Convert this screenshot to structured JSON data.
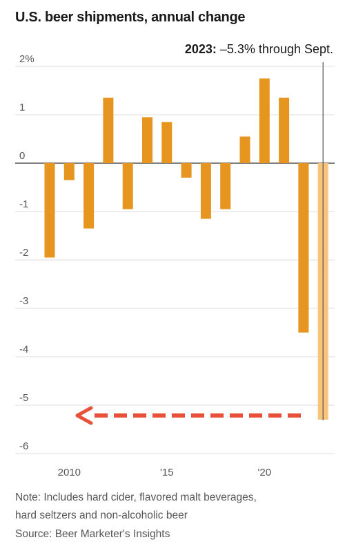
{
  "chart_data": {
    "type": "bar",
    "title": "U.S. beer shipments, annual change",
    "xlabel": "",
    "ylabel": "",
    "ylim": [
      -6,
      2
    ],
    "y_ticks": [
      2,
      1,
      0,
      -1,
      -2,
      -3,
      -4,
      -5,
      -6
    ],
    "y_tick_labels": [
      "2%",
      "1",
      "0",
      "-1",
      "-2",
      "-3",
      "-4",
      "-5",
      "-6"
    ],
    "x_ticks": [
      2010,
      2015,
      2020
    ],
    "x_tick_labels": [
      "2010",
      "'15",
      "'20"
    ],
    "categories": [
      2009,
      2010,
      2011,
      2012,
      2013,
      2014,
      2015,
      2016,
      2017,
      2018,
      2019,
      2020,
      2021,
      2022,
      2023
    ],
    "values": [
      -1.95,
      -0.35,
      -1.35,
      1.35,
      -0.95,
      0.95,
      0.85,
      -0.3,
      -1.15,
      -0.95,
      0.55,
      1.75,
      1.35,
      -3.5,
      -5.3
    ],
    "highlight_category": 2023,
    "annotation": {
      "year_label": "2023:",
      "text": " –5.3% through Sept."
    },
    "grid": true,
    "colors": {
      "bar": "#e6961e",
      "highlight_bar": "#f7c47a",
      "arrow": "#e8503a",
      "grid": "#dddddd",
      "axis_zero": "#333333"
    }
  },
  "notes": {
    "line1": "Note: Includes hard cider, flavored malt beverages,",
    "line2": "hard seltzers and non-alcoholic beer",
    "source": "Source: Beer Marketer's Insights"
  }
}
